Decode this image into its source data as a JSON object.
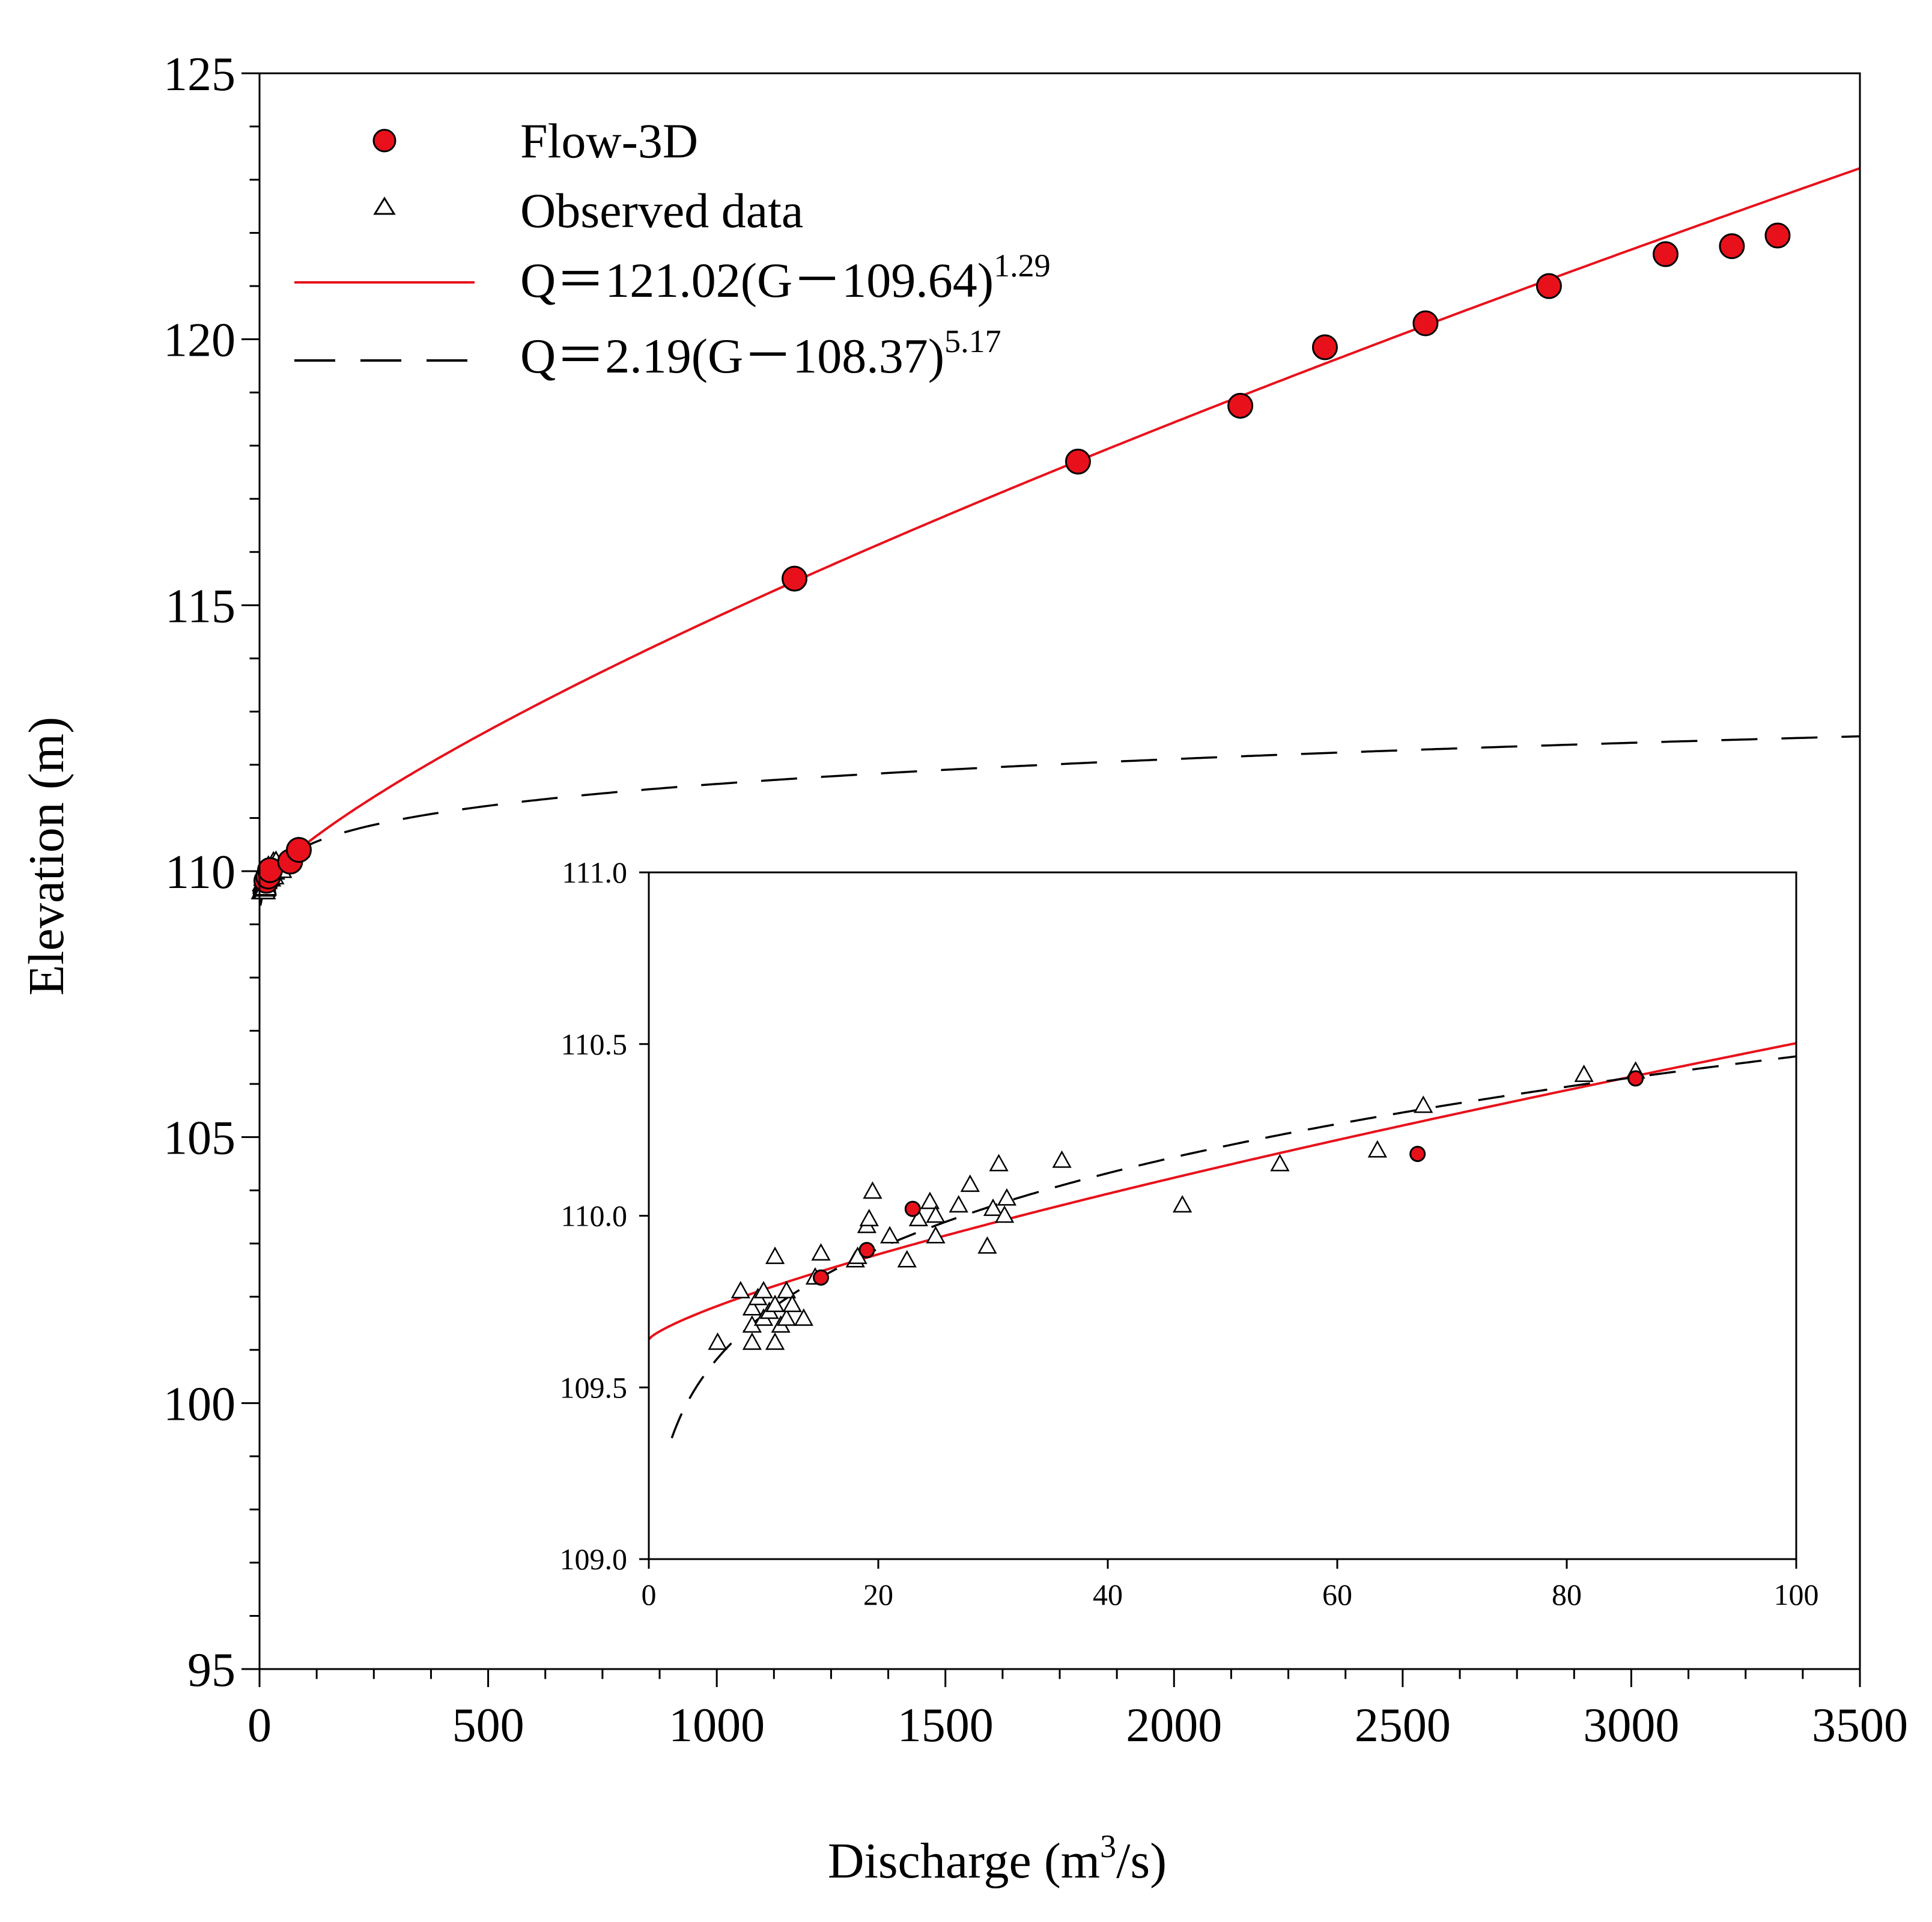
{
  "chart_data": [
    {
      "id": "main",
      "type": "scatter",
      "xlabel": "Discharge (m",
      "xlabel_sup": "3",
      "xlabel_tail": "/s)",
      "ylabel": "Elevation (m)",
      "xlim": [
        0,
        3500
      ],
      "ylim": [
        95,
        125
      ],
      "xticks": [
        0,
        500,
        1000,
        1500,
        2000,
        2500,
        3000,
        3500
      ],
      "xtick_labels": [
        "0",
        "500",
        "1000",
        "1500",
        "2000",
        "2500",
        "3000",
        "3500"
      ],
      "yticks": [
        95,
        100,
        105,
        110,
        115,
        120,
        125
      ],
      "ytick_labels": [
        "95",
        "100",
        "105",
        "110",
        "115",
        "120",
        "125"
      ],
      "legend": {
        "position": "top-left",
        "entries": [
          {
            "key": "flow3d",
            "marker": "red-circle",
            "label": "Flow-3D"
          },
          {
            "key": "observed",
            "marker": "open-triangle",
            "label": "Observed data"
          },
          {
            "key": "fit_flow3d",
            "marker": "red-line",
            "label": "Q＝121.02(G－109.64)",
            "sup": "1.29"
          },
          {
            "key": "fit_observed",
            "marker": "black-dashed-line",
            "label": "Q＝2.19(G－108.37)",
            "sup": "5.17"
          }
        ]
      },
      "series": [
        {
          "name": "Flow-3D",
          "color": "#e8111b",
          "points": [
            [
              15,
              109.82
            ],
            [
              19,
              109.9
            ],
            [
              23,
              110.02
            ],
            [
              67,
              110.18
            ],
            [
              86,
              110.4
            ],
            [
              1170,
              115.5
            ],
            [
              1790,
              117.7
            ],
            [
              2145,
              118.75
            ],
            [
              2330,
              119.85
            ],
            [
              2550,
              120.3
            ],
            [
              2820,
              121.0
            ],
            [
              3075,
              121.6
            ],
            [
              3220,
              121.75
            ],
            [
              3320,
              121.95
            ]
          ]
        },
        {
          "name": "Observed data",
          "color": "#000000",
          "points": [
            [
              6,
              109.63
            ],
            [
              8,
              109.78
            ],
            [
              9,
              109.63
            ],
            [
              9,
              109.68
            ],
            [
              9,
              109.73
            ],
            [
              9.5,
              109.76
            ],
            [
              10,
              109.7
            ],
            [
              10,
              109.78
            ],
            [
              10.5,
              109.72
            ],
            [
              11,
              109.74
            ],
            [
              11,
              109.63
            ],
            [
              11,
              109.88
            ],
            [
              11.5,
              109.68
            ],
            [
              12,
              109.7
            ],
            [
              12,
              109.78
            ],
            [
              12.5,
              109.74
            ],
            [
              13.5,
              109.7
            ],
            [
              14.5,
              109.82
            ],
            [
              15,
              109.89
            ],
            [
              18,
              109.87
            ],
            [
              18.2,
              109.88
            ],
            [
              19,
              109.97
            ],
            [
              19.2,
              109.99
            ],
            [
              19.5,
              110.07
            ],
            [
              21,
              109.94
            ],
            [
              22.5,
              109.87
            ],
            [
              23.5,
              109.99
            ],
            [
              24.5,
              110.04
            ],
            [
              25,
              110.0
            ],
            [
              25,
              109.94
            ],
            [
              27,
              110.03
            ],
            [
              28,
              110.09
            ],
            [
              29.5,
              109.91
            ],
            [
              30,
              110.02
            ],
            [
              30.5,
              110.15
            ],
            [
              31,
              110.0
            ],
            [
              31.2,
              110.05
            ],
            [
              36,
              110.16
            ],
            [
              46.5,
              110.03
            ],
            [
              55,
              110.15
            ],
            [
              63.5,
              110.19
            ],
            [
              67.5,
              110.32
            ],
            [
              81.5,
              110.41
            ],
            [
              86,
              110.42
            ]
          ]
        },
        {
          "name": "Q＝121.02(G－109.64)^1.29",
          "color": "#e8111b",
          "style": "solid",
          "equation": {
            "a": 121.02,
            "g0": 109.64,
            "b": 1.29
          },
          "q_range": [
            0,
            3500
          ]
        },
        {
          "name": "Q＝2.19(G－108.37)^5.17",
          "color": "#000000",
          "style": "dashed",
          "equation": {
            "a": 2.19,
            "g0": 108.37,
            "b": 5.17
          },
          "q_range": [
            2,
            3500
          ]
        }
      ]
    },
    {
      "id": "inset",
      "type": "scatter",
      "xlim": [
        0,
        100
      ],
      "ylim": [
        109.0,
        111.0
      ],
      "xticks": [
        0,
        20,
        40,
        60,
        80,
        100
      ],
      "xtick_labels": [
        "0",
        "20",
        "40",
        "60",
        "80",
        "100"
      ],
      "yticks": [
        109.0,
        109.5,
        110.0,
        110.5,
        111.0
      ],
      "ytick_labels": [
        "109.0",
        "109.5",
        "110.0",
        "110.5",
        "111.0"
      ],
      "note": "zoomed view of the same series, Q from 0 to 100"
    }
  ]
}
